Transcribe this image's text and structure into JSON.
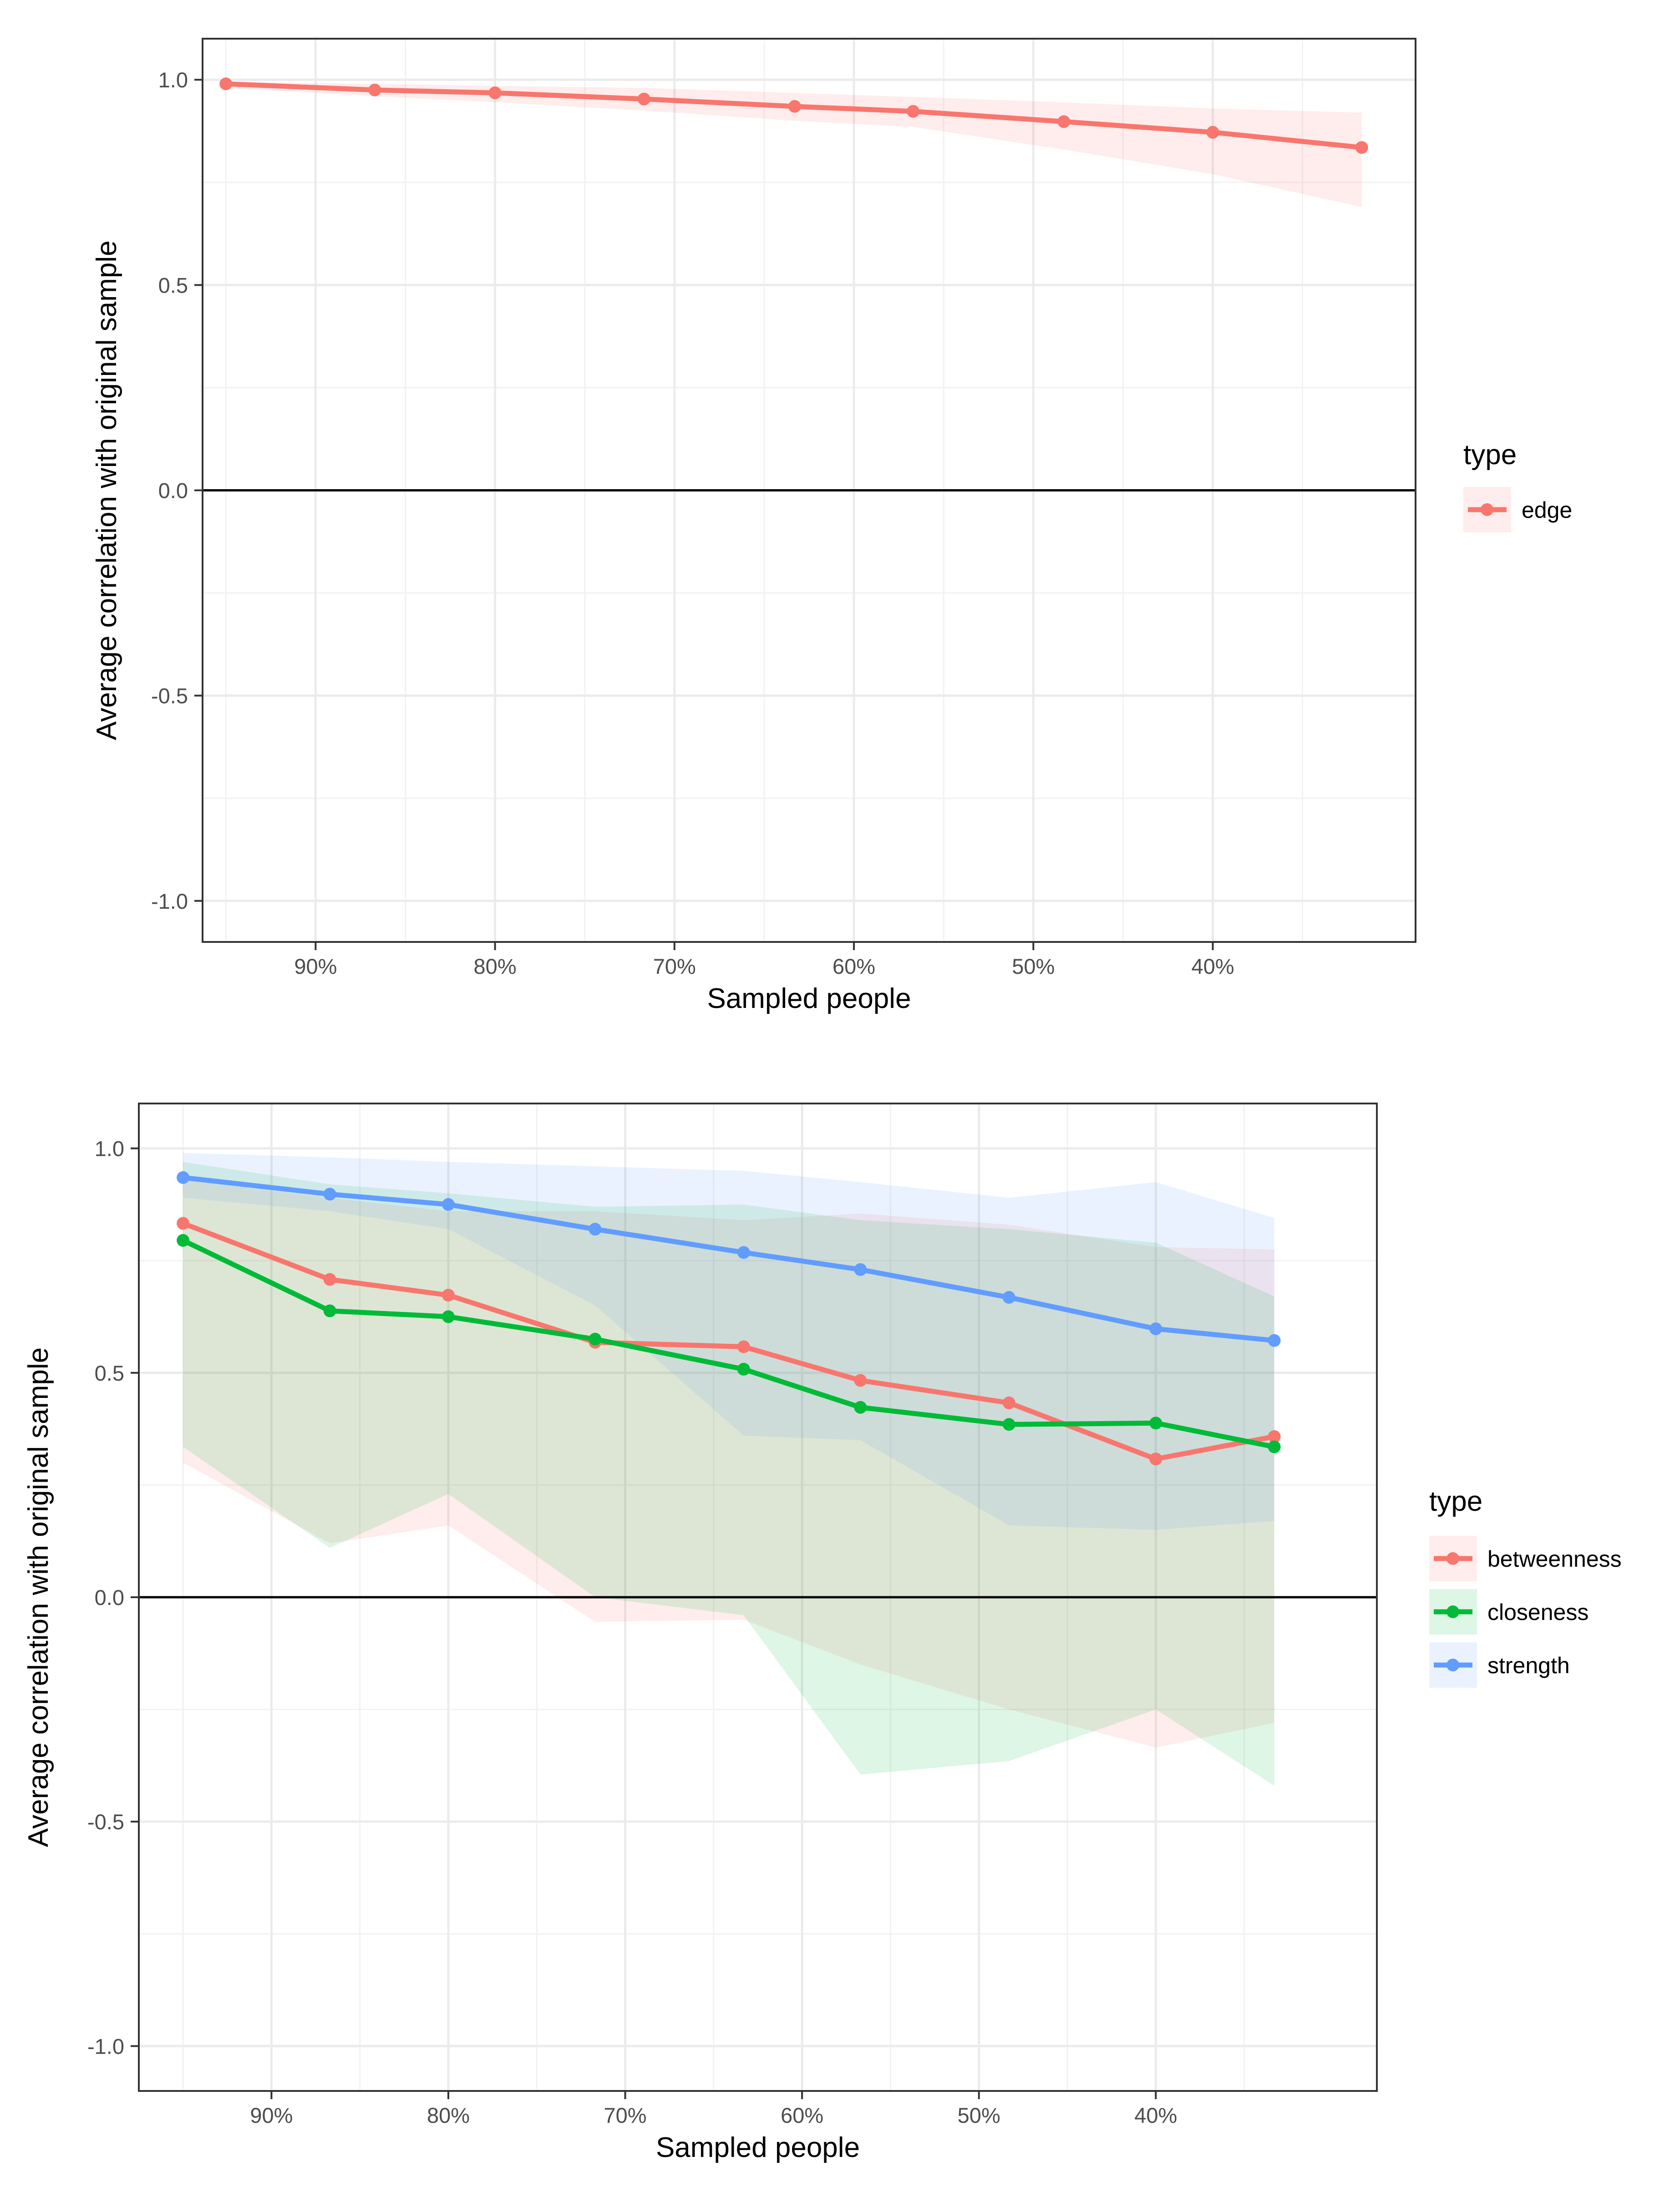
{
  "chart_data": [
    {
      "type": "line",
      "xlabel": "Sampled people",
      "ylabel": "Average correlation with original sample",
      "x_tick_labels": [
        "90%",
        "80%",
        "70%",
        "60%",
        "50%",
        "40%"
      ],
      "x_tick_values": [
        0.9,
        0.8,
        0.7,
        0.6,
        0.5,
        0.4
      ],
      "xlim": [
        0.963,
        0.287
      ],
      "ylim": [
        -1.1,
        1.1
      ],
      "y_ticks": [
        1.0,
        0.5,
        0.0,
        -0.5,
        -1.0
      ],
      "y_tick_labels": [
        "1.0",
        "0.5",
        "0.0",
        "-0.5",
        "-1.0"
      ],
      "reference_line_y": 0,
      "legend_title": "type",
      "legend_position": "right",
      "x": [
        0.95,
        0.867,
        0.8,
        0.717,
        0.633,
        0.567,
        0.483,
        0.4,
        0.317
      ],
      "series": [
        {
          "name": "edge",
          "color": "#F8766D",
          "values": [
            0.99,
            0.975,
            0.968,
            0.953,
            0.935,
            0.923,
            0.898,
            0.872,
            0.835
          ],
          "lower": [
            0.98,
            0.96,
            0.945,
            0.925,
            0.9,
            0.885,
            0.83,
            0.77,
            0.69
          ],
          "upper": [
            0.995,
            0.99,
            0.985,
            0.98,
            0.968,
            0.958,
            0.945,
            0.93,
            0.92
          ]
        }
      ]
    },
    {
      "type": "line",
      "xlabel": "Sampled people",
      "ylabel": "Average correlation with original sample",
      "x_tick_labels": [
        "90%",
        "80%",
        "70%",
        "60%",
        "50%",
        "40%"
      ],
      "x_tick_values": [
        0.9,
        0.8,
        0.7,
        0.6,
        0.5,
        0.4
      ],
      "xlim": [
        0.975,
        0.275
      ],
      "ylim": [
        -1.1,
        1.1
      ],
      "y_ticks": [
        1.0,
        0.5,
        0.0,
        -0.5,
        -1.0
      ],
      "y_tick_labels": [
        "1.0",
        "0.5",
        "0.0",
        "-0.5",
        "-1.0"
      ],
      "reference_line_y": 0,
      "legend_title": "type",
      "legend_position": "right",
      "x": [
        0.95,
        0.867,
        0.8,
        0.717,
        0.633,
        0.567,
        0.483,
        0.4,
        0.333
      ],
      "series": [
        {
          "name": "betweenness",
          "color": "#F8766D",
          "values": [
            0.833,
            0.708,
            0.673,
            0.568,
            0.558,
            0.483,
            0.433,
            0.308,
            0.358
          ],
          "lower": [
            0.3,
            0.12,
            0.16,
            -0.055,
            -0.05,
            -0.15,
            -0.25,
            -0.335,
            -0.28
          ],
          "upper": [
            0.93,
            0.89,
            0.86,
            0.86,
            0.84,
            0.855,
            0.83,
            0.78,
            0.775
          ]
        },
        {
          "name": "closeness",
          "color": "#00BA38",
          "values": [
            0.795,
            0.638,
            0.625,
            0.575,
            0.508,
            0.423,
            0.385,
            0.388,
            0.335
          ],
          "lower": [
            0.335,
            0.11,
            0.23,
            0.0,
            -0.04,
            -0.395,
            -0.365,
            -0.25,
            -0.42
          ],
          "upper": [
            0.97,
            0.92,
            0.9,
            0.87,
            0.875,
            0.84,
            0.82,
            0.79,
            0.67
          ]
        },
        {
          "name": "strength",
          "color": "#619CFF",
          "values": [
            0.935,
            0.898,
            0.875,
            0.82,
            0.768,
            0.73,
            0.668,
            0.598,
            0.572
          ],
          "lower": [
            0.89,
            0.86,
            0.82,
            0.65,
            0.36,
            0.35,
            0.16,
            0.15,
            0.17
          ],
          "upper": [
            0.99,
            0.98,
            0.97,
            0.96,
            0.95,
            0.925,
            0.89,
            0.925,
            0.845
          ]
        }
      ]
    }
  ]
}
